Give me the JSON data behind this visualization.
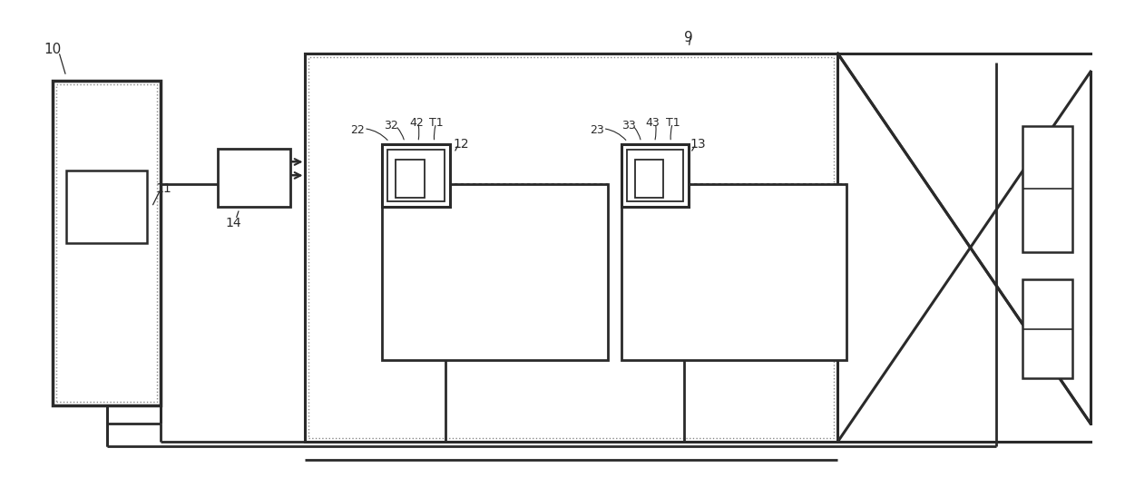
{
  "bg_color": "#ffffff",
  "line_color": "#2a2a2a",
  "fig_width": 12.4,
  "fig_height": 5.48,
  "dpi": 100
}
